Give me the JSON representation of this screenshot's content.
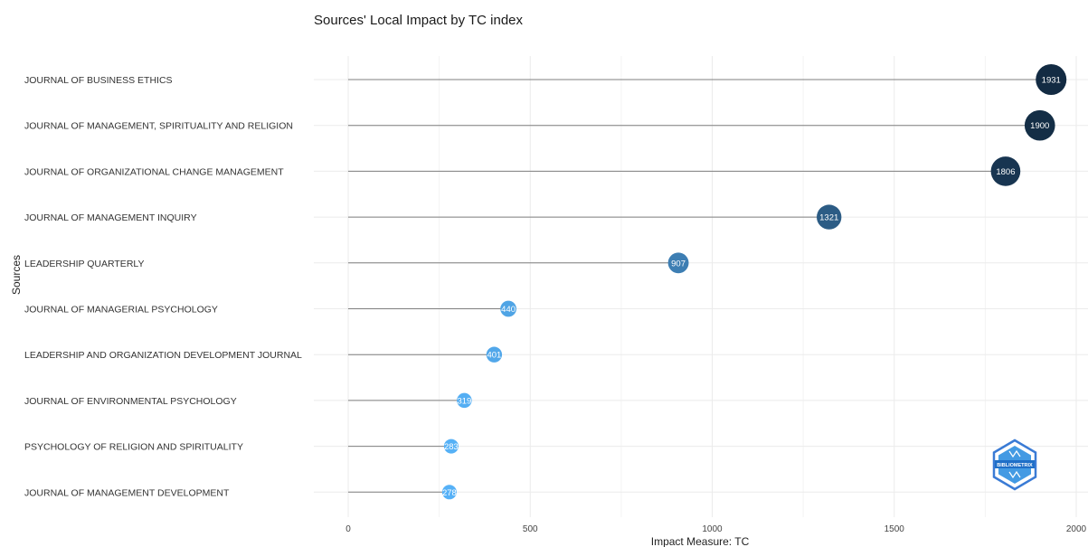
{
  "chart_data": {
    "type": "lollipop",
    "title": "Sources' Local Impact by TC index",
    "xlabel": "Impact Measure: TC",
    "ylabel": "Sources",
    "xlim": [
      0,
      2000
    ],
    "xticks": [
      0,
      500,
      1000,
      1500,
      2000
    ],
    "grid": true,
    "categories": [
      "JOURNAL OF BUSINESS ETHICS",
      "JOURNAL OF MANAGEMENT, SPIRITUALITY AND RELIGION",
      "JOURNAL OF ORGANIZATIONAL CHANGE MANAGEMENT",
      "JOURNAL OF MANAGEMENT INQUIRY",
      "LEADERSHIP QUARTERLY",
      "JOURNAL OF MANAGERIAL PSYCHOLOGY",
      "LEADERSHIP AND ORGANIZATION DEVELOPMENT JOURNAL",
      "JOURNAL OF ENVIRONMENTAL PSYCHOLOGY",
      "PSYCHOLOGY OF RELIGION AND SPIRITUALITY",
      "JOURNAL OF MANAGEMENT DEVELOPMENT"
    ],
    "values": [
      1931,
      1900,
      1806,
      1321,
      907,
      440,
      401,
      319,
      283,
      278
    ]
  },
  "watermark": {
    "text": "BIBLIOMETRIX"
  },
  "colors": {
    "low": "#56b1f7",
    "high": "#132b43",
    "stem": "#7f7f7f",
    "grid": "#ebebeb"
  }
}
